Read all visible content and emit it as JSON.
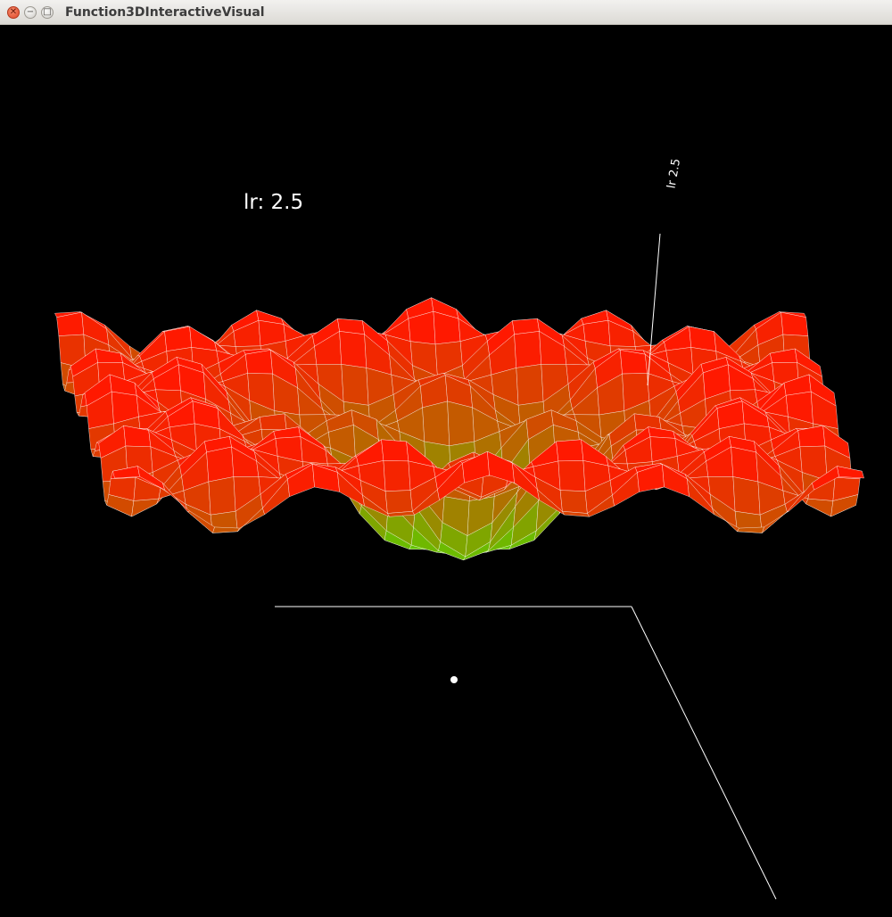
{
  "window": {
    "title": "Function3DInteractiveVisual",
    "controls": [
      "close-icon",
      "minimize-icon",
      "maximize-icon"
    ],
    "close_glyph": "✕",
    "minimize_glyph": "−",
    "maximize_glyph": "□"
  },
  "scene": {
    "param_label": "lr: 2.5",
    "axis_tag": "lr 2.5",
    "background": "#000000",
    "low_color": "#33ff00",
    "high_color": "#ff1400",
    "mesh_line_color": "#ffffff"
  }
}
